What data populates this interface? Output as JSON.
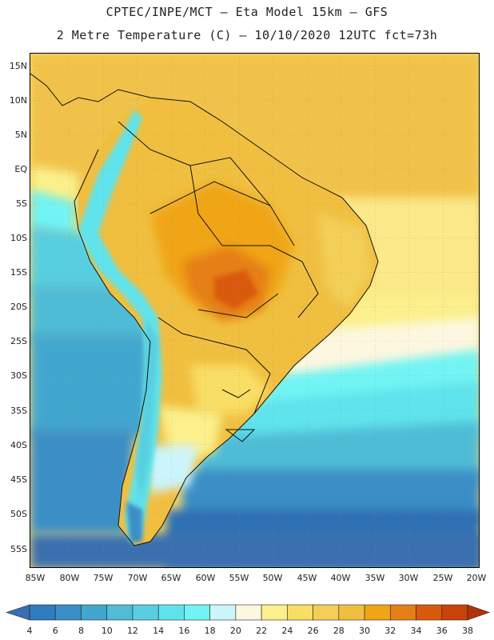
{
  "header": {
    "line1": "CPTEC/INPE/MCT –  Eta Model 15km – GFS",
    "line2": "2 Metre Temperature (C) – 10/10/2020 12UTC fct=73h"
  },
  "map": {
    "lat_labels": [
      "15N",
      "10N",
      "5N",
      "EQ",
      "5S",
      "10S",
      "15S",
      "20S",
      "25S",
      "30S",
      "35S",
      "40S",
      "45S",
      "50S",
      "55S"
    ],
    "lon_labels": [
      "85W",
      "80W",
      "75W",
      "70W",
      "65W",
      "60W",
      "55W",
      "50W",
      "45W",
      "40W",
      "35W",
      "30W",
      "25W",
      "20W"
    ],
    "extent": {
      "lon_min": -86,
      "lon_max": -19.5,
      "lat_min": -57.5,
      "lat_max": 16.5
    }
  },
  "colorbar": {
    "labels": [
      "4",
      "6",
      "8",
      "10",
      "12",
      "14",
      "16",
      "18",
      "20",
      "22",
      "24",
      "26",
      "28",
      "30",
      "32",
      "34",
      "36",
      "38"
    ],
    "colors": [
      "#3a6fb0",
      "#2f7cbf",
      "#3a8ec6",
      "#42a7cf",
      "#50bcd6",
      "#58cfe0",
      "#5ee3ec",
      "#72f4f4",
      "#ccf4fb",
      "#fdf7df",
      "#fbf08b",
      "#f9de65",
      "#f3cf58",
      "#f0bf40",
      "#f0a517",
      "#e57f16",
      "#da5a0c",
      "#c9420b",
      "#b4320a"
    ],
    "unit": "C"
  }
}
